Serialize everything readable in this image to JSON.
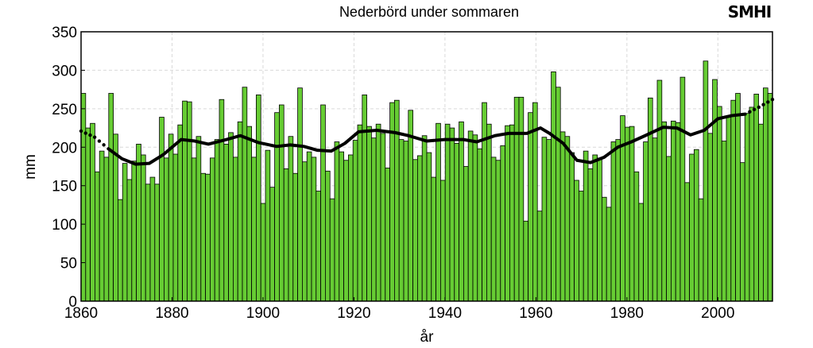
{
  "chart_data": {
    "type": "bar",
    "title": "Nederbörd under sommaren",
    "xlabel": "år",
    "ylabel": "mm",
    "logo": "SMHI",
    "ylim": [
      0,
      350
    ],
    "yticks": [
      0,
      50,
      100,
      150,
      200,
      250,
      300,
      350
    ],
    "xlim": [
      1860,
      2012
    ],
    "xticks": [
      1860,
      1880,
      1900,
      1920,
      1940,
      1960,
      1980,
      2000
    ],
    "grid": true,
    "start_year": 1860,
    "values": [
      270,
      225,
      231,
      168,
      195,
      187,
      270,
      217,
      132,
      179,
      158,
      182,
      204,
      190,
      152,
      161,
      152,
      239,
      186,
      217,
      191,
      229,
      260,
      259,
      186,
      214,
      166,
      165,
      186,
      210,
      262,
      204,
      219,
      187,
      233,
      278,
      227,
      187,
      268,
      127,
      196,
      148,
      245,
      255,
      172,
      214,
      166,
      277,
      181,
      194,
      187,
      143,
      255,
      169,
      133,
      207,
      194,
      183,
      190,
      209,
      229,
      268,
      227,
      212,
      230,
      218,
      173,
      258,
      261,
      210,
      208,
      248,
      184,
      189,
      215,
      193,
      161,
      231,
      157,
      230,
      225,
      205,
      233,
      175,
      221,
      216,
      198,
      258,
      230,
      187,
      183,
      202,
      228,
      229,
      265,
      265,
      104,
      245,
      258,
      117,
      213,
      210,
      298,
      278,
      220,
      214,
      193,
      157,
      143,
      195,
      172,
      190,
      186,
      135,
      122,
      207,
      210,
      241,
      226,
      227,
      168,
      127,
      207,
      264,
      212,
      287,
      233,
      188,
      234,
      232,
      291,
      154,
      191,
      197,
      133,
      312,
      218,
      288,
      253,
      208,
      239,
      261,
      270,
      180,
      244,
      252,
      269,
      230,
      277,
      270
    ],
    "trend": {
      "name": "smoothed",
      "points": [
        [
          1860,
          221
        ],
        [
          1863,
          213
        ],
        [
          1866,
          198
        ],
        [
          1869,
          185
        ],
        [
          1872,
          178
        ],
        [
          1875,
          179
        ],
        [
          1878,
          190
        ],
        [
          1882,
          210
        ],
        [
          1885,
          208
        ],
        [
          1888,
          204
        ],
        [
          1892,
          210
        ],
        [
          1895,
          215
        ],
        [
          1899,
          206
        ],
        [
          1903,
          201
        ],
        [
          1906,
          203
        ],
        [
          1909,
          201
        ],
        [
          1912,
          196
        ],
        [
          1915,
          195
        ],
        [
          1918,
          205
        ],
        [
          1921,
          220
        ],
        [
          1925,
          222
        ],
        [
          1929,
          219
        ],
        [
          1932,
          215
        ],
        [
          1936,
          208
        ],
        [
          1940,
          210
        ],
        [
          1944,
          210
        ],
        [
          1947,
          207
        ],
        [
          1951,
          215
        ],
        [
          1954,
          218
        ],
        [
          1958,
          218
        ],
        [
          1961,
          225
        ],
        [
          1963,
          218
        ],
        [
          1966,
          205
        ],
        [
          1969,
          183
        ],
        [
          1972,
          180
        ],
        [
          1975,
          187
        ],
        [
          1978,
          200
        ],
        [
          1981,
          207
        ],
        [
          1984,
          215
        ],
        [
          1988,
          226
        ],
        [
          1991,
          225
        ],
        [
          1994,
          216
        ],
        [
          1997,
          222
        ],
        [
          2000,
          237
        ],
        [
          2003,
          241
        ],
        [
          2006,
          243
        ],
        [
          2009,
          252
        ],
        [
          2012,
          262
        ]
      ],
      "dotted_until": 1865,
      "dotted_from": 2007
    }
  }
}
